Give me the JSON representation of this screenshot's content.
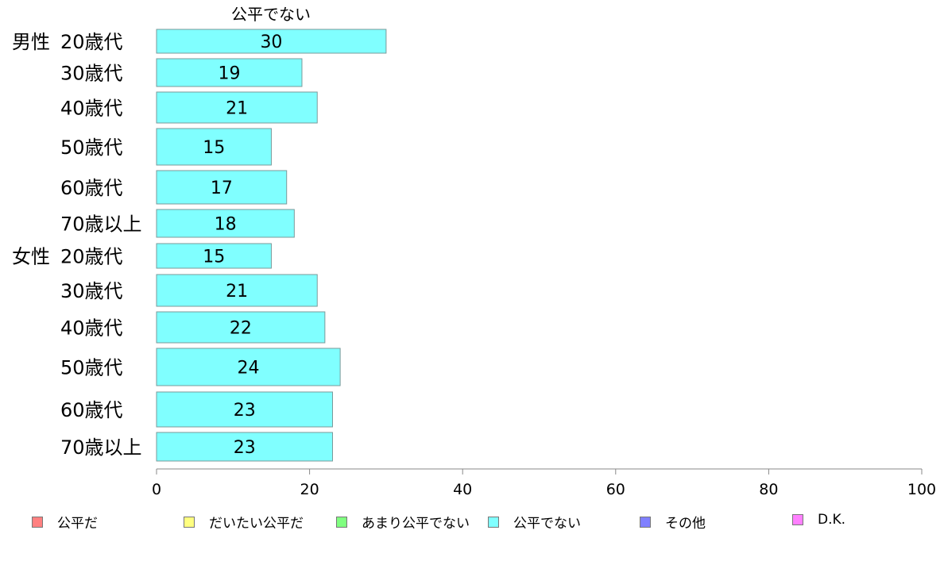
{
  "chart_data": {
    "type": "bar",
    "orientation": "horizontal",
    "title": "公平でない",
    "groups": [
      {
        "label": "男性",
        "categories": [
          "20歳代",
          "30歳代",
          "40歳代",
          "50歳代",
          "60歳代",
          "70歳以上"
        ]
      },
      {
        "label": "女性",
        "categories": [
          "20歳代",
          "30歳代",
          "40歳代",
          "50歳代",
          "60歳代",
          "70歳以上"
        ]
      }
    ],
    "series": [
      {
        "name": "公平でない",
        "color": "#80ffff",
        "values": [
          30,
          19,
          21,
          15,
          17,
          18,
          15,
          21,
          22,
          24,
          23,
          23
        ]
      }
    ],
    "xlim": [
      0,
      100
    ],
    "xticks": [
      "0",
      "20",
      "40",
      "60",
      "80",
      "100"
    ],
    "legend": {
      "placement": "bottom",
      "items": [
        {
          "label": "公平だ",
          "color": "#ff8080"
        },
        {
          "label": "だいたい公平だ",
          "color": "#ffff80"
        },
        {
          "label": "あまり公平でない",
          "color": "#80ff80"
        },
        {
          "label": "公平でない",
          "color": "#80ffff"
        },
        {
          "label": "その他",
          "color": "#8080ff"
        },
        {
          "label": "D.K.",
          "color": "#ff80ff"
        }
      ]
    }
  }
}
